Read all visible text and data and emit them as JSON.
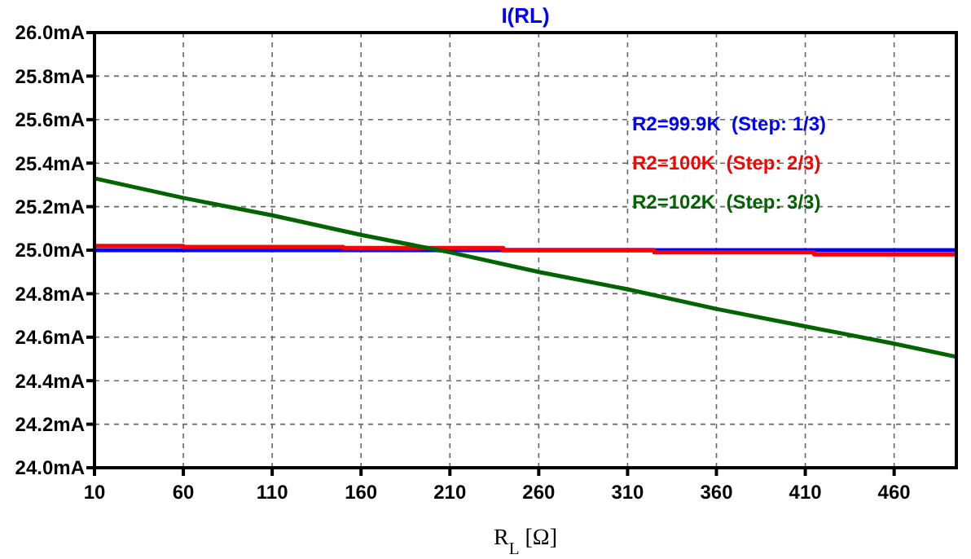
{
  "chart_data": {
    "type": "line",
    "title": "I(RL)",
    "xlabel": "R$_{L}$ [Ω]",
    "xlim": [
      10,
      495
    ],
    "xticks": [
      10,
      60,
      110,
      160,
      210,
      260,
      310,
      360,
      410,
      460
    ],
    "ylim": [
      24,
      26
    ],
    "yticks": [
      {
        "value": 24,
        "label": "24.0mA"
      },
      {
        "value": 24.2,
        "label": "24.2mA"
      },
      {
        "value": 24.4,
        "label": "24.4mA"
      },
      {
        "value": 24.6,
        "label": "24.6mA"
      },
      {
        "value": 24.8,
        "label": "24.8mA"
      },
      {
        "value": 25,
        "label": "25.0mA"
      },
      {
        "value": 25.2,
        "label": "25.2mA"
      },
      {
        "value": 25.4,
        "label": "25.4mA"
      },
      {
        "value": 25.6,
        "label": "25.6mA"
      },
      {
        "value": 25.8,
        "label": "25.8mA"
      },
      {
        "value": 26,
        "label": "26.0mA"
      }
    ],
    "grid": true,
    "legend": "top right",
    "line_style": "solid",
    "marker": "none",
    "series": [
      {
        "name": "R2=99.9K  (Step: 1/3)",
        "color": "#0000ff",
        "x": [
          10,
          495
        ],
        "values": [
          25.0,
          25.0
        ]
      },
      {
        "name": "R2=100K  (Step: 2/3)",
        "color": "#ff0000",
        "x": [
          10,
          60,
          60,
          150,
          150,
          240,
          240,
          325,
          325,
          415,
          415,
          495
        ],
        "values": [
          25.02,
          25.02,
          25.015,
          25.015,
          25.01,
          25.01,
          25.0,
          25.0,
          24.99,
          24.99,
          24.98,
          24.98
        ]
      },
      {
        "name": "R2=102K  (Step: 3/3)",
        "color": "#006400",
        "x": [
          10,
          60,
          110,
          160,
          210,
          260,
          310,
          360,
          410,
          460,
          495
        ],
        "values": [
          25.33,
          25.24,
          25.16,
          25.07,
          24.99,
          24.9,
          24.82,
          24.73,
          24.65,
          24.57,
          24.51
        ]
      }
    ]
  }
}
